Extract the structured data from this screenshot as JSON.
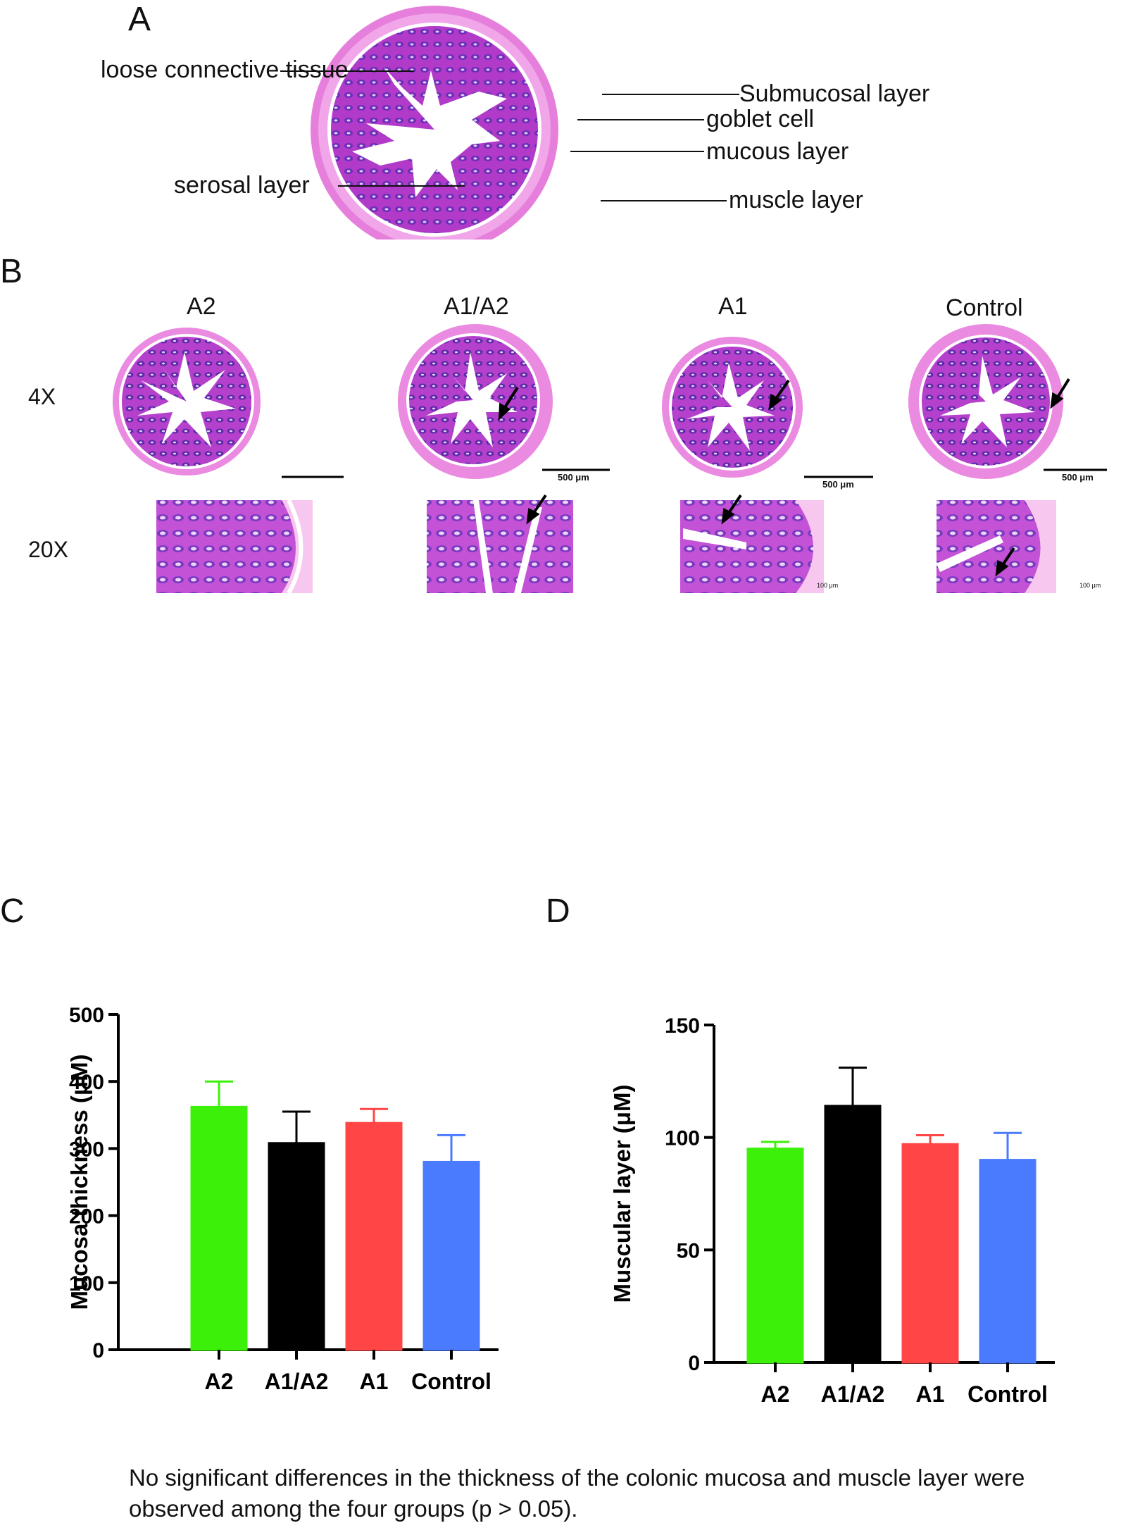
{
  "panelA": {
    "letter": "A",
    "labels": {
      "loose_connective_tissue": "loose connective tissue",
      "submucosal_layer": "Submucosal layer",
      "goblet_cell": "goblet cell",
      "mucous_layer": "mucous layer",
      "serosal_layer": "serosal layer",
      "muscle_layer": "muscle layer"
    }
  },
  "panelB": {
    "letter": "B",
    "groups": [
      "A2",
      "A1/A2",
      "A1",
      "Control"
    ],
    "magnifications": [
      "4X",
      "20X"
    ],
    "scale_4x": "500 μm",
    "scale_20x": "100 μm"
  },
  "chartC": {
    "letter": "C"
  },
  "chartD": {
    "letter": "D"
  },
  "chart_data": [
    {
      "type": "bar",
      "categories": [
        "A2",
        "A1/A2",
        "A1",
        "Control"
      ],
      "values": [
        362,
        308,
        338,
        280
      ],
      "errors": [
        38,
        47,
        21,
        40
      ],
      "colors": [
        "#3cf00a",
        "#000000",
        "#ff4545",
        "#4a7bff"
      ],
      "ylabel": "Mucosa thickness (μM)",
      "ylim": [
        0,
        500
      ],
      "yticks": [
        0,
        100,
        200,
        300,
        400,
        500
      ]
    },
    {
      "type": "bar",
      "categories": [
        "A2",
        "A1/A2",
        "A1",
        "Control"
      ],
      "values": [
        95,
        114,
        97,
        90
      ],
      "errors": [
        3,
        17,
        4,
        12
      ],
      "colors": [
        "#3cf00a",
        "#000000",
        "#ff4545",
        "#4a7bff"
      ],
      "ylabel": "Muscular layer (μM)",
      "ylim": [
        0,
        150
      ],
      "yticks": [
        0,
        50,
        100,
        150
      ]
    }
  ],
  "caption": "No significant differences in the thickness of the colonic mucosa and muscle layer were observed among the four groups (p > 0.05)."
}
